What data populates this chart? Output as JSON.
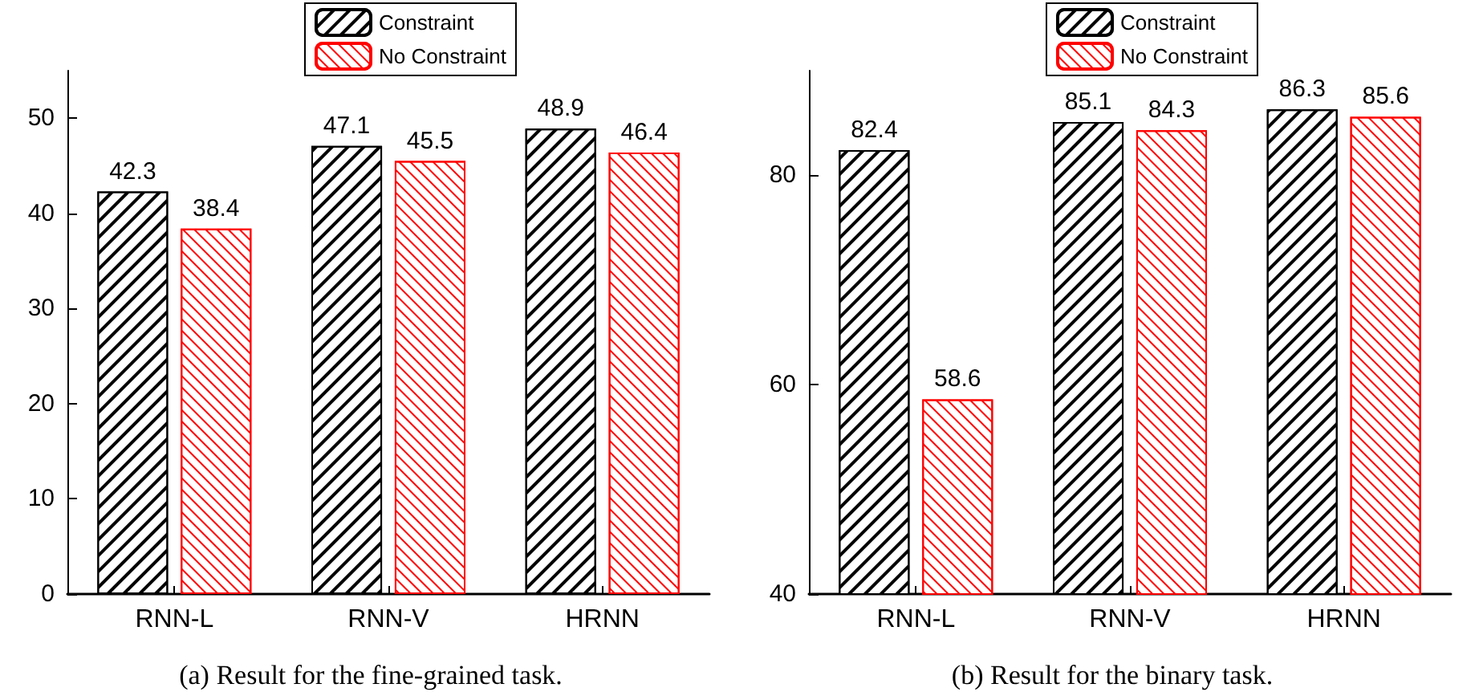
{
  "chart_data": [
    {
      "type": "bar",
      "title": "(a) Result for the fine-grained task.",
      "categories": [
        "RNN-L",
        "RNN-V",
        "HRNN"
      ],
      "series": [
        {
          "name": "Constraint",
          "color": "#000000",
          "values": [
            42.3,
            47.1,
            48.9
          ]
        },
        {
          "name": "No Constraint",
          "color": "#ff0000",
          "values": [
            38.4,
            45.5,
            46.4
          ]
        }
      ],
      "ylim": [
        0,
        55
      ],
      "yticks": [
        0,
        10,
        20,
        30,
        40,
        50
      ],
      "data_labels": true,
      "legend": "top",
      "grid": false
    },
    {
      "type": "bar",
      "title": "(b) Result for the binary task.",
      "categories": [
        "RNN-L",
        "RNN-V",
        "HRNN"
      ],
      "series": [
        {
          "name": "Constraint",
          "color": "#000000",
          "values": [
            82.4,
            85.1,
            86.3
          ]
        },
        {
          "name": "No Constraint",
          "color": "#ff0000",
          "values": [
            58.6,
            84.3,
            85.6
          ]
        }
      ],
      "ylim": [
        40,
        90
      ],
      "yticks": [
        40,
        60,
        80
      ],
      "data_labels": true,
      "legend": "top",
      "grid": false
    }
  ]
}
